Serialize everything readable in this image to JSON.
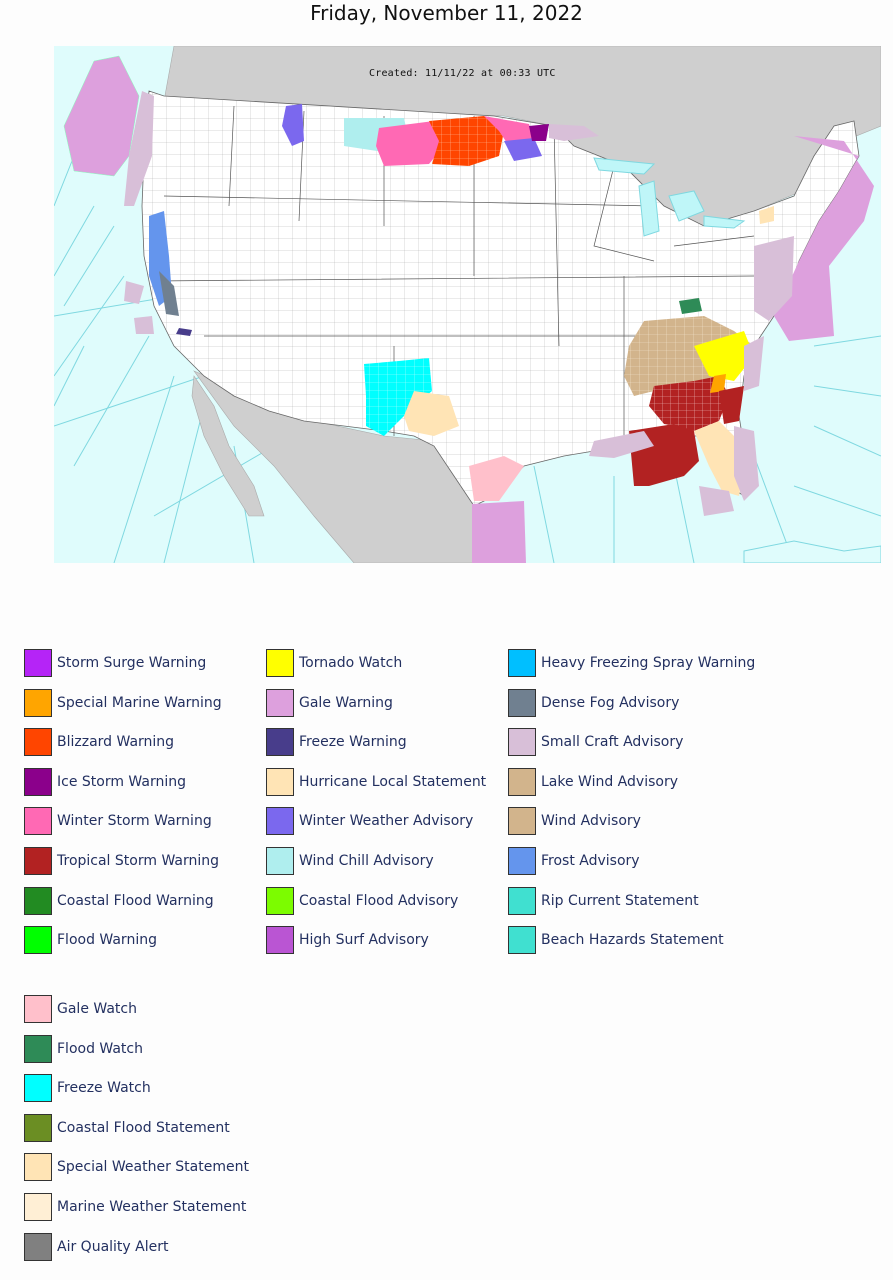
{
  "page": {
    "title": "Friday, November 11, 2022"
  },
  "map": {
    "created_text": "Created: 11/11/22 at 00:33 UTC",
    "colors": {
      "ocean": "#dffcfc",
      "land_us": "#ffffff",
      "land_other": "#cfcfcf",
      "zone_lines": "#7fd8e0"
    }
  },
  "legend": {
    "col1": [
      {
        "label": "Storm Surge Warning",
        "color": "#b524f7"
      },
      {
        "label": "Special Marine Warning",
        "color": "#ffa500"
      },
      {
        "label": "Blizzard Warning",
        "color": "#ff4500"
      },
      {
        "label": "Ice Storm Warning",
        "color": "#8b008b"
      },
      {
        "label": "Winter Storm Warning",
        "color": "#ff69b4"
      },
      {
        "label": "Tropical Storm Warning",
        "color": "#b22222"
      },
      {
        "label": "Coastal Flood Warning",
        "color": "#228b22"
      },
      {
        "label": "Flood Warning",
        "color": "#00ff00"
      }
    ],
    "col2": [
      {
        "label": "Tornado Watch",
        "color": "#ffff00"
      },
      {
        "label": "Gale Warning",
        "color": "#dda0dd"
      },
      {
        "label": "Freeze Warning",
        "color": "#483d8b"
      },
      {
        "label": "Hurricane Local Statement",
        "color": "#ffe4b5"
      },
      {
        "label": "Winter Weather Advisory",
        "color": "#7b68ee"
      },
      {
        "label": "Wind Chill Advisory",
        "color": "#afeeee"
      },
      {
        "label": "Coastal Flood Advisory",
        "color": "#7cfc00"
      },
      {
        "label": "High Surf Advisory",
        "color": "#ba55d3"
      }
    ],
    "col3": [
      {
        "label": "Heavy Freezing Spray Warning",
        "color": "#00bfff"
      },
      {
        "label": "Dense Fog Advisory",
        "color": "#708090"
      },
      {
        "label": "Small Craft Advisory",
        "color": "#d8bfd8"
      },
      {
        "label": "Lake Wind Advisory",
        "color": "#d2b48c"
      },
      {
        "label": "Wind Advisory",
        "color": "#d2b48c"
      },
      {
        "label": "Frost Advisory",
        "color": "#6495ed"
      },
      {
        "label": "Rip Current Statement",
        "color": "#40e0d0"
      },
      {
        "label": "Beach Hazards Statement",
        "color": "#40e0d0"
      }
    ],
    "col4": [
      {
        "label": "Gale Watch",
        "color": "#ffc0cb"
      },
      {
        "label": "Flood Watch",
        "color": "#2e8b57"
      },
      {
        "label": "Freeze Watch",
        "color": "#00ffff"
      },
      {
        "label": "Coastal Flood Statement",
        "color": "#6b8e23"
      },
      {
        "label": "Special Weather Statement",
        "color": "#ffe4b5"
      },
      {
        "label": "Marine Weather Statement",
        "color": "#ffefd5"
      },
      {
        "label": "Air Quality Alert",
        "color": "#808080"
      }
    ]
  }
}
